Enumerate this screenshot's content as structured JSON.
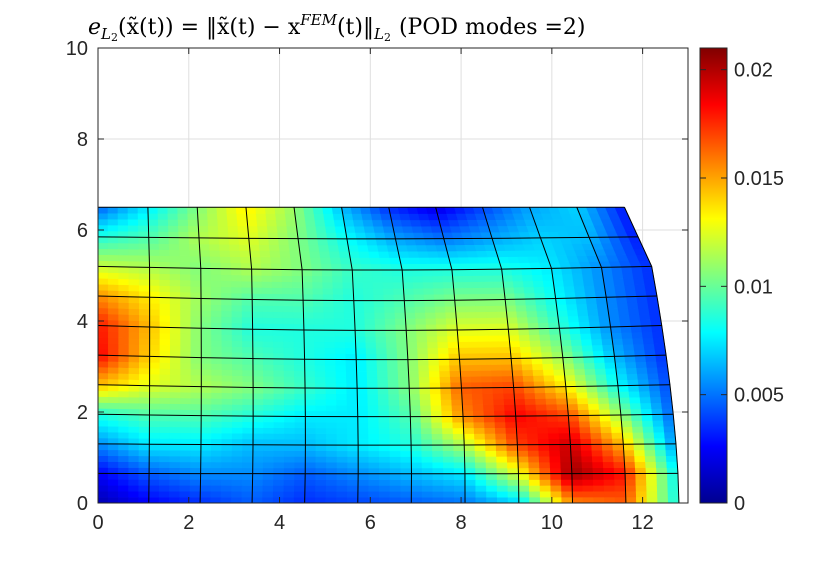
{
  "chart_data": {
    "type": "heatmap",
    "title": "e_{L2}(x̃(t)) = ‖x̃(t) − x^{FEM}(t)‖_{L2} (POD modes =2)",
    "title_parts": {
      "symbol_e": "e",
      "sub_L": "L",
      "sub_2": "2",
      "arg": "(x̃(t)) = ‖x̃(t) − x",
      "sup_fem": "FEM",
      "rest": "(t)‖",
      "norm_sub_L": "L",
      "norm_sub_2": "2",
      "label": "(POD modes =2)"
    },
    "xlabel": "",
    "ylabel": "",
    "xlim": [
      0,
      13
    ],
    "ylim": [
      0,
      10
    ],
    "xticks": [
      0,
      2,
      4,
      6,
      8,
      10,
      12
    ],
    "yticks": [
      0,
      2,
      4,
      6,
      8,
      10
    ],
    "grid": true,
    "colormap": "jet",
    "colorbar": {
      "clim": [
        0,
        0.021
      ],
      "ticks": [
        "0",
        "0.005",
        "0.01",
        "0.015",
        "0.02"
      ],
      "tick_values": [
        0,
        0.005,
        0.01,
        0.015,
        0.02
      ]
    },
    "mesh": {
      "rows": 11,
      "cols": 12,
      "description_free": true,
      "top_y": 6.5,
      "bottom_right_x": 12.8,
      "top_right_x": 11.6
    },
    "error_field": [
      [
        0.0045,
        0.0075,
        0.0105,
        0.0135,
        0.011,
        0.0065,
        0.0035,
        0.002,
        0.004,
        0.006,
        0.007,
        0.003
      ],
      [
        0.0085,
        0.0095,
        0.0115,
        0.0125,
        0.0105,
        0.008,
        0.006,
        0.005,
        0.006,
        0.007,
        0.0065,
        0.003
      ],
      [
        0.012,
        0.0115,
        0.0105,
        0.0115,
        0.0105,
        0.009,
        0.0085,
        0.0085,
        0.0085,
        0.0075,
        0.0055,
        0.0035
      ],
      [
        0.0155,
        0.0135,
        0.011,
        0.0095,
        0.0095,
        0.0085,
        0.0095,
        0.0105,
        0.0105,
        0.008,
        0.0055,
        0.0035
      ],
      [
        0.018,
        0.0145,
        0.0105,
        0.0085,
        0.0085,
        0.0085,
        0.0105,
        0.0125,
        0.0125,
        0.009,
        0.0055,
        0.0035
      ],
      [
        0.0185,
        0.014,
        0.0105,
        0.0095,
        0.0085,
        0.0075,
        0.0105,
        0.0145,
        0.0145,
        0.011,
        0.0065,
        0.0035
      ],
      [
        0.0145,
        0.0125,
        0.0115,
        0.0105,
        0.009,
        0.0075,
        0.0105,
        0.0165,
        0.017,
        0.0135,
        0.008,
        0.004
      ],
      [
        0.0085,
        0.0095,
        0.0095,
        0.0085,
        0.0075,
        0.0075,
        0.0095,
        0.0155,
        0.0185,
        0.017,
        0.011,
        0.0045
      ],
      [
        0.0055,
        0.0075,
        0.0075,
        0.0065,
        0.0065,
        0.0075,
        0.0085,
        0.0115,
        0.017,
        0.0195,
        0.0145,
        0.0055
      ],
      [
        0.0025,
        0.0045,
        0.0055,
        0.0055,
        0.0045,
        0.0055,
        0.0065,
        0.0075,
        0.0125,
        0.0205,
        0.018,
        0.0075
      ],
      [
        0.001,
        0.0025,
        0.0035,
        0.0045,
        0.0035,
        0.004,
        0.0045,
        0.005,
        0.007,
        0.0155,
        0.0165,
        0.008
      ]
    ]
  }
}
